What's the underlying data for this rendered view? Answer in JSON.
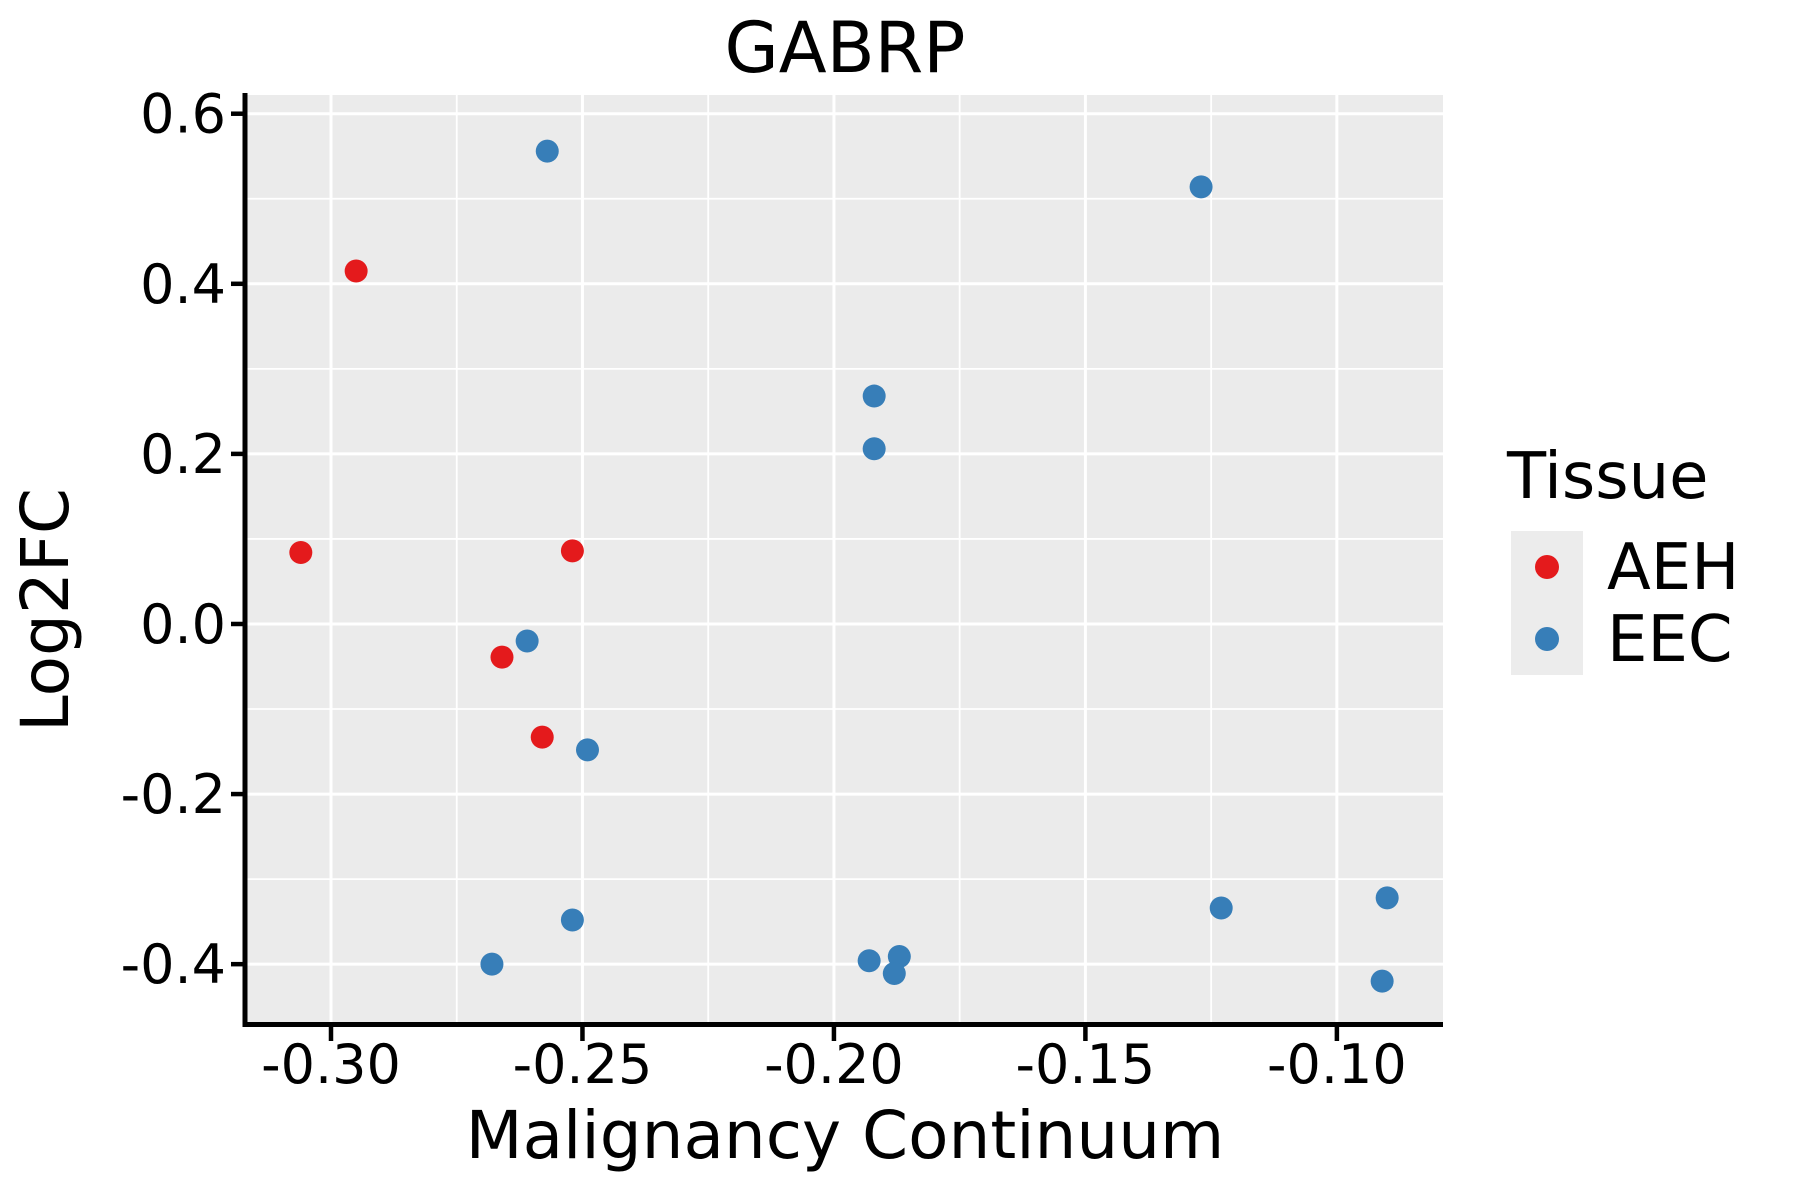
{
  "title": "GABRP",
  "axes": {
    "x_label": "Malignancy Continuum",
    "y_label": "Log2FC"
  },
  "legend": {
    "title": "Tissue",
    "items": [
      {
        "label": "AEH",
        "color": "#E41A1C"
      },
      {
        "label": "EEC",
        "color": "#377EB8"
      }
    ]
  },
  "style": {
    "panel_bg": "#EBEBEB",
    "grid_color": "#FFFFFF",
    "legend_key_bg": "#ECECEC",
    "axis_color": "#000000",
    "point_radius": 11.5
  },
  "chart_data": {
    "type": "scatter",
    "title": "GABRP",
    "xlabel": "Malignancy Continuum",
    "ylabel": "Log2FC",
    "xlim": [
      -0.3167,
      -0.0789
    ],
    "ylim": [
      -0.468,
      0.622
    ],
    "x_ticks": {
      "values": [
        -0.3,
        -0.25,
        -0.2,
        -0.15,
        -0.1
      ],
      "labels": [
        "-0.30",
        "-0.25",
        "-0.20",
        "-0.15",
        "-0.10"
      ]
    },
    "y_ticks": {
      "values": [
        0.6,
        0.4,
        0.2,
        0.0,
        -0.2,
        -0.4
      ],
      "labels": [
        "0.6",
        "0.4",
        "0.2",
        "0.0",
        "-0.2",
        "-0.4"
      ]
    },
    "grid": "major-and-minor",
    "legend_position": "right",
    "series": [
      {
        "name": "AEH",
        "color": "#E41A1C",
        "points": [
          [
            -0.295,
            0.415
          ],
          [
            -0.306,
            0.084
          ],
          [
            -0.252,
            0.086
          ],
          [
            -0.266,
            -0.039
          ],
          [
            -0.258,
            -0.133
          ]
        ]
      },
      {
        "name": "EEC",
        "color": "#377EB8",
        "points": [
          [
            -0.257,
            0.556
          ],
          [
            -0.127,
            0.514
          ],
          [
            -0.192,
            0.268
          ],
          [
            -0.192,
            0.206
          ],
          [
            -0.261,
            -0.02
          ],
          [
            -0.249,
            -0.148
          ],
          [
            -0.252,
            -0.348
          ],
          [
            -0.268,
            -0.4
          ],
          [
            -0.193,
            -0.396
          ],
          [
            -0.187,
            -0.391
          ],
          [
            -0.188,
            -0.411
          ],
          [
            -0.123,
            -0.334
          ],
          [
            -0.09,
            -0.322
          ],
          [
            -0.091,
            -0.42
          ]
        ]
      }
    ]
  }
}
